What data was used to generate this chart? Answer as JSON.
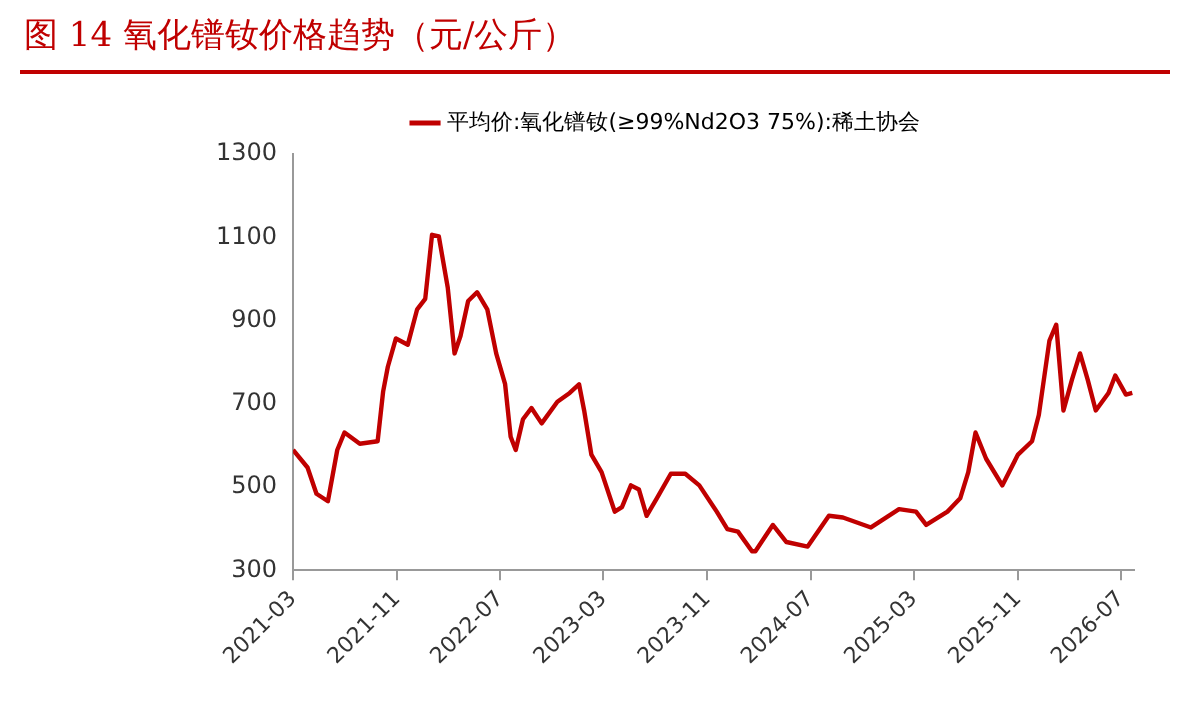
{
  "chart_data": {
    "type": "line",
    "title": "图 14 氧化镨钕价格趋势（元/公斤）",
    "x": [
      "2021-03-01",
      "2021-04-04",
      "2021-04-25",
      "2021-05-22",
      "2021-06-13",
      "2021-06-30",
      "2021-08-05",
      "2021-09-16",
      "2021-09-29",
      "2021-10-10",
      "2021-10-29",
      "2021-11-26",
      "2021-12-18",
      "2022-01-06",
      "2022-01-22",
      "2022-02-07",
      "2022-02-28",
      "2022-03-16",
      "2022-03-30",
      "2022-04-17",
      "2022-05-08",
      "2022-06-01",
      "2022-06-22",
      "2022-07-13",
      "2022-07-26",
      "2022-08-07",
      "2022-08-24",
      "2022-09-13",
      "2022-10-07",
      "2022-11-13",
      "2022-12-12",
      "2023-01-03",
      "2023-01-15",
      "2023-02-01",
      "2023-02-25",
      "2023-03-28",
      "2023-04-14",
      "2023-05-05",
      "2023-05-24",
      "2023-06-11",
      "2023-07-05",
      "2023-08-07",
      "2023-09-10",
      "2023-10-13",
      "2023-11-23",
      "2023-12-18",
      "2024-01-12",
      "2024-02-14",
      "2024-02-22",
      "2024-04-03",
      "2024-05-05",
      "2024-06-24",
      "2024-08-13",
      "2024-09-15",
      "2024-11-20",
      "2025-01-25",
      "2025-03-06",
      "2025-03-30",
      "2025-05-19",
      "2025-06-18",
      "2025-07-07",
      "2025-07-24",
      "2025-08-18",
      "2025-09-25",
      "2025-11-01",
      "2025-12-04",
      "2025-12-20",
      "2026-01-14",
      "2026-01-30",
      "2026-02-16",
      "2026-03-08",
      "2026-03-27",
      "2026-04-14",
      "2026-05-03",
      "2026-06-02",
      "2026-06-18",
      "2026-07-13",
      "2026-07-28"
    ],
    "series": [
      {
        "name": "平均价:氧化镨钕(≥99%Nd2O3 75%):稀土协会",
        "color": "#c00000",
        "values": [
          589,
          547,
          484,
          466,
          589,
          631,
          604,
          610,
          730,
          789,
          857,
          842,
          927,
          952,
          1106,
          1102,
          979,
          821,
          863,
          947,
          968,
          927,
          821,
          747,
          621,
          589,
          663,
          690,
          653,
          705,
          726,
          747,
          684,
          578,
          536,
          441,
          452,
          504,
          494,
          431,
          473,
          532,
          532,
          504,
          441,
          399,
          393,
          346,
          346,
          409,
          368,
          357,
          431,
          427,
          403,
          447,
          441,
          409,
          441,
          473,
          536,
          631,
          568,
          504,
          578,
          610,
          673,
          852,
          890,
          684,
          758,
          821,
          758,
          684,
          726,
          768,
          722,
          726
        ]
      }
    ],
    "xlim": [
      "2021-03",
      "2026-08"
    ],
    "xticks": [
      "2021-03",
      "2021-11",
      "2022-07",
      "2023-03",
      "2023-11",
      "2024-07",
      "2025-03",
      "2025-11",
      "2026-07"
    ],
    "ylim": [
      300,
      1300
    ],
    "yticks": [
      300,
      500,
      700,
      900,
      1100,
      1300
    ],
    "grid": false,
    "legend": "top",
    "marker": "none",
    "line_style": "solid"
  }
}
